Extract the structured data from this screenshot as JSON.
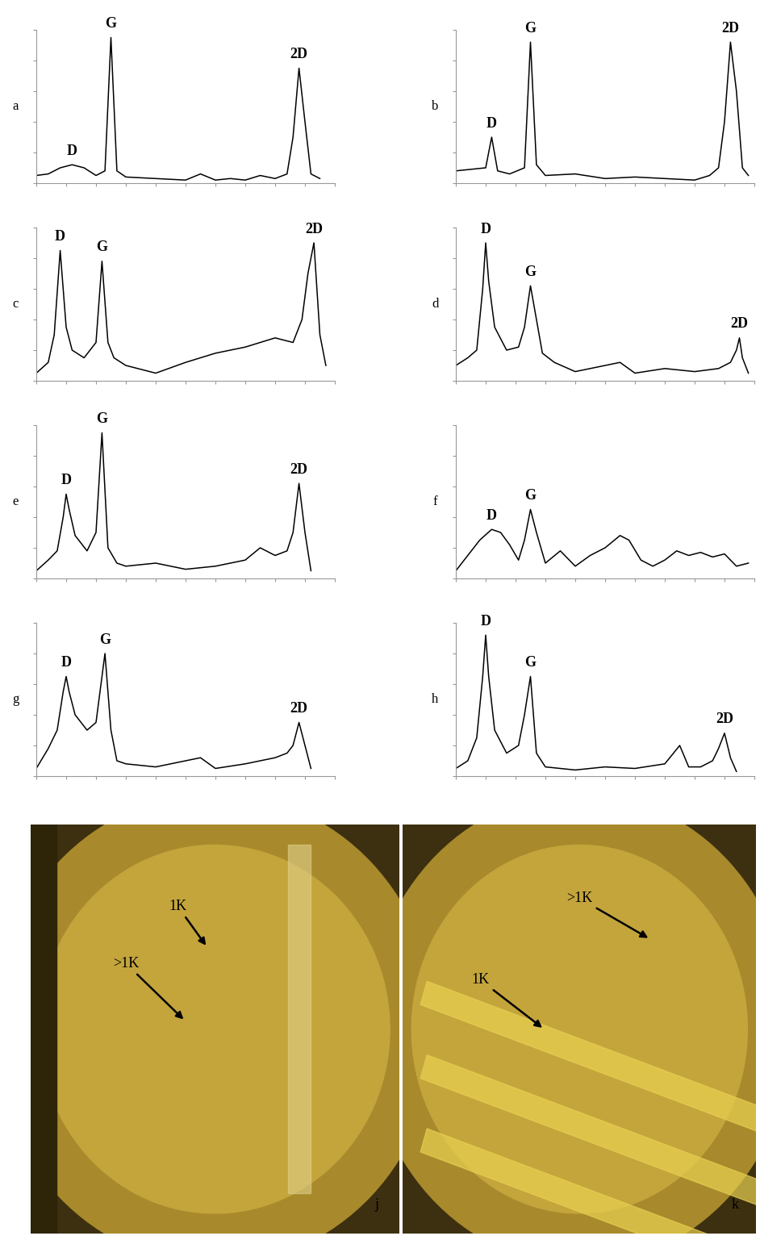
{
  "chart_data": [
    {
      "type": "line",
      "ylabel": "a",
      "color": "#000000",
      "tick_labels": false,
      "grid": false,
      "xlim": [
        0,
        100
      ],
      "ylim": [
        0,
        100
      ],
      "xticks": [
        0,
        10,
        20,
        30,
        40,
        50,
        60,
        70,
        80,
        90,
        100
      ],
      "yticks": [
        0,
        20,
        40,
        60,
        80,
        100
      ],
      "x": [
        0,
        4,
        8,
        12,
        16,
        20,
        23,
        25,
        27,
        30,
        40,
        50,
        55,
        60,
        65,
        70,
        75,
        80,
        84,
        86,
        88,
        90,
        92,
        95
      ],
      "values": [
        5,
        6,
        10,
        12,
        10,
        5,
        8,
        95,
        8,
        4,
        3,
        2,
        6,
        2,
        3,
        2,
        5,
        3,
        6,
        30,
        75,
        40,
        6,
        3
      ],
      "annotations": [
        {
          "text": "D",
          "x": 12,
          "y": 12
        },
        {
          "text": "G",
          "x": 25,
          "y": 95
        },
        {
          "text": "2D",
          "x": 88,
          "y": 75
        }
      ]
    },
    {
      "type": "line",
      "ylabel": "b",
      "color": "#000000",
      "tick_labels": false,
      "grid": false,
      "xlim": [
        0,
        100
      ],
      "ylim": [
        0,
        100
      ],
      "xticks": [
        0,
        10,
        20,
        30,
        40,
        50,
        60,
        70,
        80,
        90,
        100
      ],
      "yticks": [
        0,
        20,
        40,
        60,
        80,
        100
      ],
      "x": [
        0,
        5,
        10,
        12,
        14,
        18,
        23,
        25,
        27,
        30,
        40,
        50,
        60,
        70,
        80,
        85,
        88,
        90,
        92,
        94,
        96,
        98
      ],
      "values": [
        8,
        9,
        10,
        30,
        8,
        6,
        10,
        92,
        12,
        5,
        6,
        3,
        4,
        3,
        2,
        5,
        10,
        40,
        92,
        60,
        10,
        5
      ],
      "annotations": [
        {
          "text": "D",
          "x": 12,
          "y": 30
        },
        {
          "text": "G",
          "x": 25,
          "y": 92
        },
        {
          "text": "2D",
          "x": 92,
          "y": 92
        }
      ]
    },
    {
      "type": "line",
      "ylabel": "c",
      "color": "#000000",
      "tick_labels": false,
      "grid": false,
      "xlim": [
        0,
        100
      ],
      "ylim": [
        0,
        100
      ],
      "xticks": [
        0,
        10,
        20,
        30,
        40,
        50,
        60,
        70,
        80,
        90,
        100
      ],
      "yticks": [
        0,
        20,
        40,
        60,
        80,
        100
      ],
      "x": [
        0,
        4,
        6,
        8,
        10,
        12,
        16,
        20,
        22,
        24,
        26,
        30,
        40,
        50,
        60,
        70,
        80,
        86,
        89,
        91,
        93,
        95,
        97
      ],
      "values": [
        5,
        12,
        30,
        85,
        35,
        20,
        15,
        25,
        78,
        25,
        15,
        10,
        5,
        12,
        18,
        22,
        28,
        25,
        40,
        70,
        90,
        30,
        10
      ],
      "annotations": [
        {
          "text": "D",
          "x": 8,
          "y": 85
        },
        {
          "text": "G",
          "x": 22,
          "y": 78
        },
        {
          "text": "2D",
          "x": 93,
          "y": 90
        }
      ]
    },
    {
      "type": "line",
      "ylabel": "d",
      "color": "#000000",
      "tick_labels": false,
      "grid": false,
      "xlim": [
        0,
        100
      ],
      "ylim": [
        0,
        100
      ],
      "xticks": [
        0,
        10,
        20,
        30,
        40,
        50,
        60,
        70,
        80,
        90,
        100
      ],
      "yticks": [
        0,
        20,
        40,
        60,
        80,
        100
      ],
      "x": [
        0,
        4,
        7,
        9,
        10,
        11,
        13,
        17,
        21,
        23,
        25,
        27,
        29,
        33,
        40,
        50,
        55,
        60,
        70,
        80,
        88,
        92,
        94,
        95,
        96,
        98
      ],
      "values": [
        10,
        15,
        20,
        60,
        90,
        65,
        35,
        20,
        22,
        35,
        62,
        40,
        18,
        12,
        6,
        10,
        12,
        5,
        8,
        6,
        8,
        12,
        20,
        28,
        15,
        5
      ],
      "annotations": [
        {
          "text": "D",
          "x": 10,
          "y": 90
        },
        {
          "text": "G",
          "x": 25,
          "y": 62
        },
        {
          "text": "2D",
          "x": 95,
          "y": 28
        }
      ]
    },
    {
      "type": "line",
      "ylabel": "e",
      "color": "#000000",
      "tick_labels": false,
      "grid": false,
      "xlim": [
        0,
        100
      ],
      "ylim": [
        0,
        100
      ],
      "xticks": [
        0,
        10,
        20,
        30,
        40,
        50,
        60,
        70,
        80,
        90,
        100
      ],
      "yticks": [
        0,
        20,
        40,
        60,
        80,
        100
      ],
      "x": [
        0,
        4,
        7,
        9,
        10,
        11,
        13,
        17,
        20,
        22,
        24,
        27,
        30,
        40,
        50,
        60,
        70,
        75,
        80,
        84,
        86,
        88,
        90,
        92
      ],
      "values": [
        5,
        12,
        18,
        40,
        55,
        45,
        28,
        18,
        30,
        95,
        20,
        10,
        8,
        10,
        6,
        8,
        12,
        20,
        15,
        18,
        30,
        62,
        30,
        5
      ],
      "annotations": [
        {
          "text": "D",
          "x": 10,
          "y": 55
        },
        {
          "text": "G",
          "x": 22,
          "y": 95
        },
        {
          "text": "2D",
          "x": 88,
          "y": 62
        }
      ]
    },
    {
      "type": "line",
      "ylabel": "f",
      "color": "#000000",
      "tick_labels": false,
      "grid": false,
      "xlim": [
        0,
        100
      ],
      "ylim": [
        0,
        100
      ],
      "xticks": [
        0,
        10,
        20,
        30,
        40,
        50,
        60,
        70,
        80,
        90,
        100
      ],
      "yticks": [
        0,
        20,
        40,
        60,
        80,
        100
      ],
      "x": [
        0,
        4,
        8,
        12,
        15,
        18,
        21,
        23,
        25,
        27,
        30,
        35,
        40,
        45,
        50,
        55,
        58,
        62,
        66,
        70,
        74,
        78,
        82,
        86,
        90,
        94,
        98
      ],
      "values": [
        5,
        15,
        25,
        32,
        30,
        22,
        12,
        25,
        45,
        30,
        10,
        18,
        8,
        15,
        20,
        28,
        25,
        12,
        8,
        12,
        18,
        15,
        17,
        14,
        16,
        8,
        10
      ],
      "annotations": [
        {
          "text": "D",
          "x": 12,
          "y": 32
        },
        {
          "text": "G",
          "x": 25,
          "y": 45
        }
      ]
    },
    {
      "type": "line",
      "ylabel": "g",
      "color": "#000000",
      "tick_labels": false,
      "grid": false,
      "xlim": [
        0,
        100
      ],
      "ylim": [
        0,
        100
      ],
      "xticks": [
        0,
        10,
        20,
        30,
        40,
        50,
        60,
        70,
        80,
        90,
        100
      ],
      "yticks": [
        0,
        20,
        40,
        60,
        80,
        100
      ],
      "x": [
        0,
        4,
        7,
        9,
        10,
        11,
        13,
        17,
        20,
        23,
        25,
        27,
        30,
        40,
        50,
        55,
        60,
        70,
        80,
        84,
        86,
        88,
        90,
        92
      ],
      "values": [
        5,
        18,
        30,
        55,
        65,
        55,
        40,
        30,
        35,
        80,
        30,
        10,
        8,
        6,
        10,
        12,
        5,
        8,
        12,
        15,
        20,
        35,
        20,
        5
      ],
      "annotations": [
        {
          "text": "D",
          "x": 10,
          "y": 65
        },
        {
          "text": "G",
          "x": 23,
          "y": 80
        },
        {
          "text": "2D",
          "x": 88,
          "y": 35
        }
      ]
    },
    {
      "type": "line",
      "ylabel": "h",
      "color": "#000000",
      "tick_labels": false,
      "grid": false,
      "xlim": [
        0,
        100
      ],
      "ylim": [
        0,
        100
      ],
      "xticks": [
        0,
        10,
        20,
        30,
        40,
        50,
        60,
        70,
        80,
        90,
        100
      ],
      "yticks": [
        0,
        20,
        40,
        60,
        80,
        100
      ],
      "x": [
        0,
        4,
        7,
        9,
        10,
        11,
        13,
        17,
        21,
        23,
        25,
        27,
        30,
        40,
        50,
        60,
        70,
        75,
        78,
        82,
        86,
        88,
        90,
        92,
        94
      ],
      "values": [
        5,
        10,
        25,
        65,
        92,
        65,
        30,
        15,
        20,
        40,
        65,
        15,
        6,
        4,
        6,
        5,
        8,
        20,
        6,
        6,
        10,
        18,
        28,
        12,
        3
      ],
      "annotations": [
        {
          "text": "D",
          "x": 10,
          "y": 92
        },
        {
          "text": "G",
          "x": 25,
          "y": 65
        },
        {
          "text": "2D",
          "x": 90,
          "y": 28
        }
      ]
    }
  ],
  "images": [
    {
      "label": "j",
      "annotations": [
        {
          "text": "1K"
        },
        {
          "text": ">1K"
        }
      ]
    },
    {
      "label": "k",
      "annotations": [
        {
          "text": ">1K"
        },
        {
          "text": "1K"
        }
      ]
    }
  ]
}
